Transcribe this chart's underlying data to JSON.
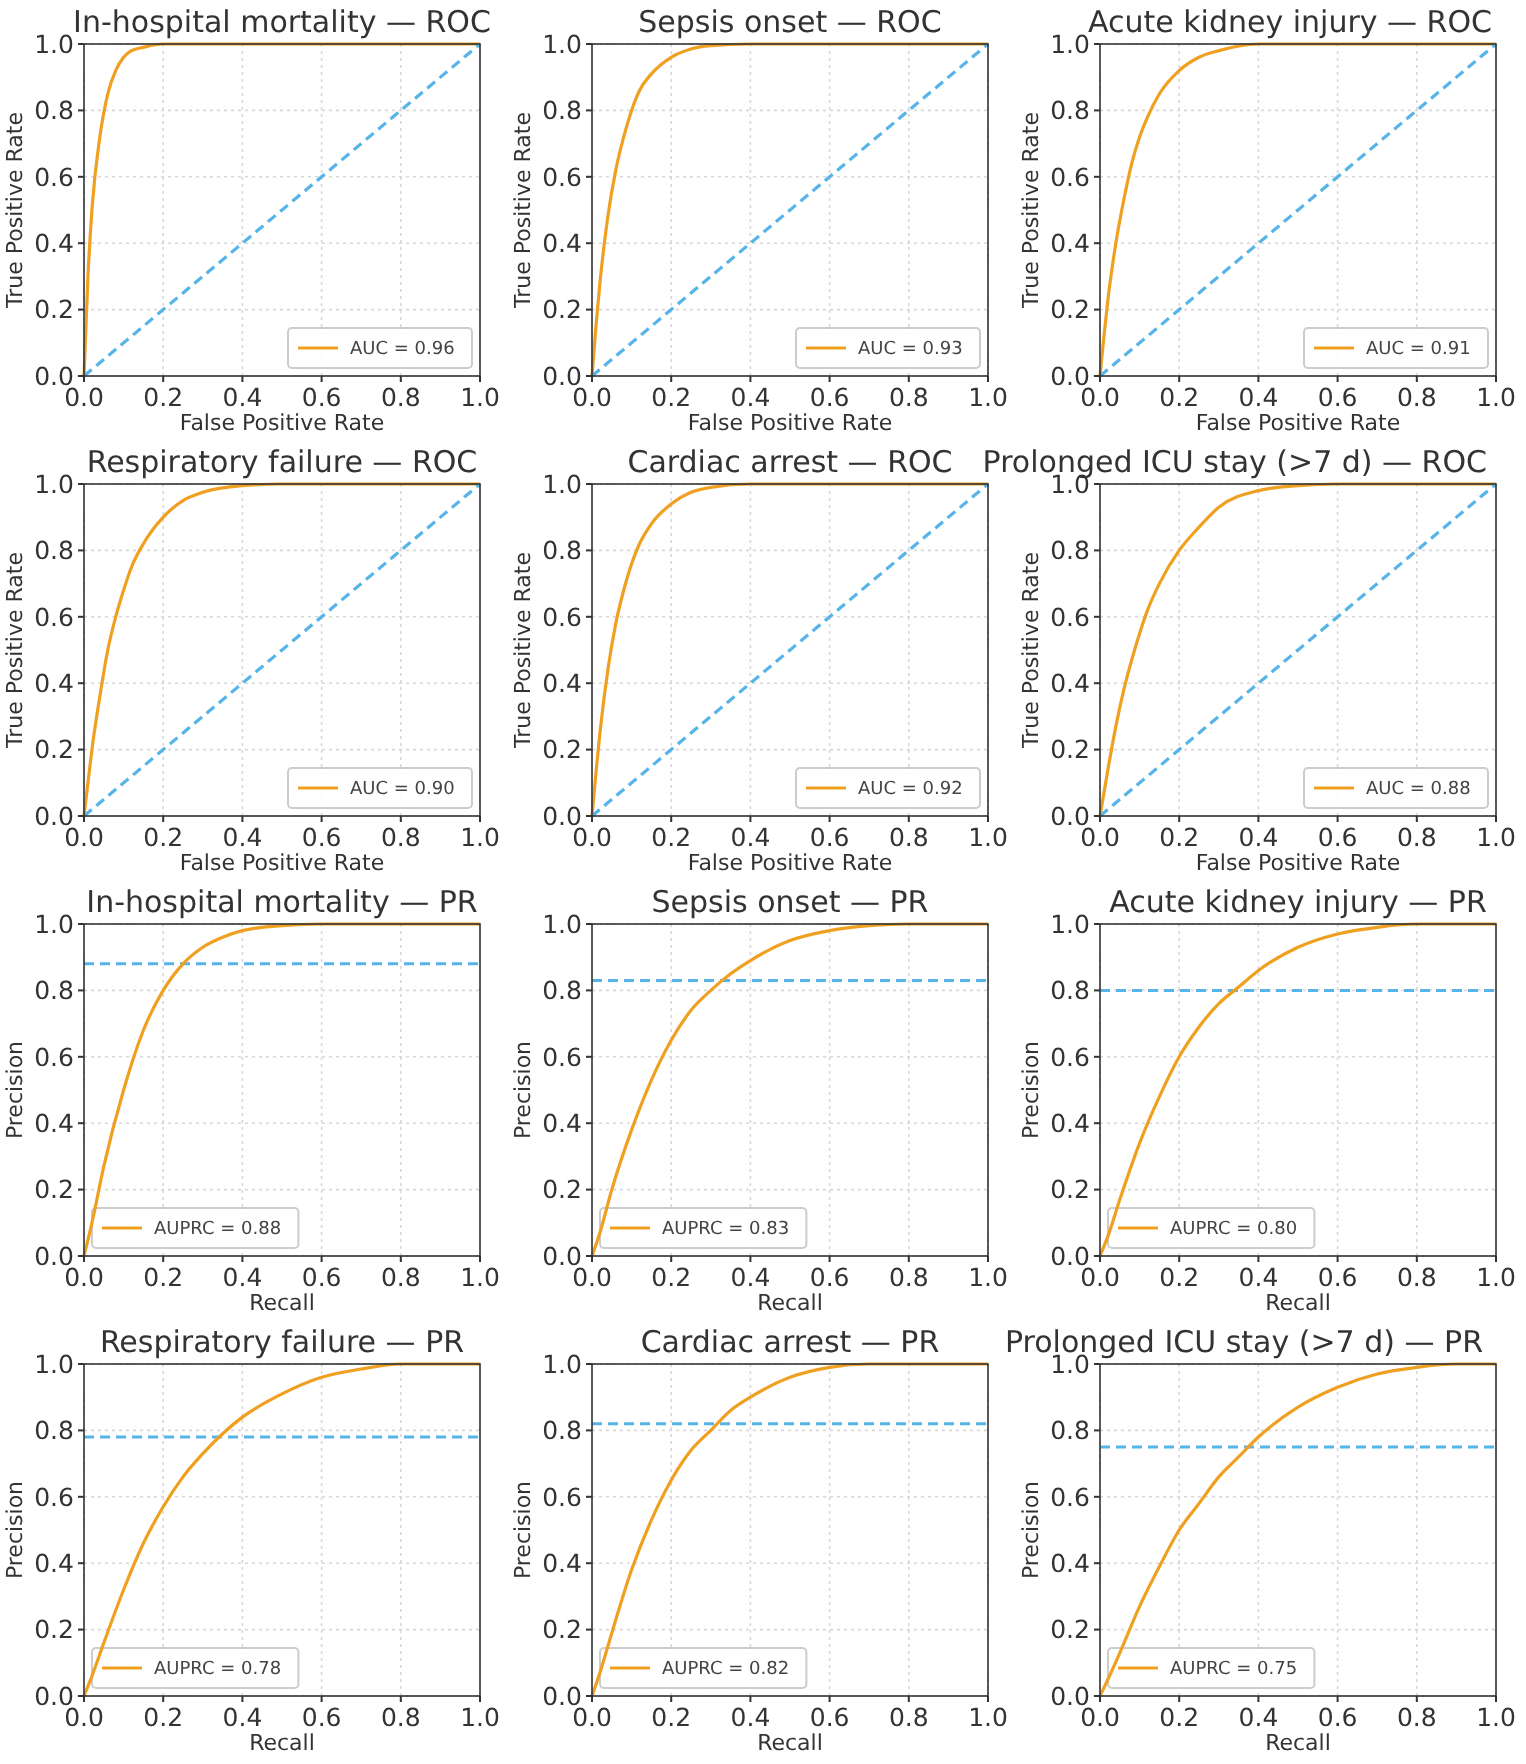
{
  "chart_data": [
    {
      "type": "line",
      "title": "In-hospital mortality — ROC",
      "xlabel": "False Positive Rate",
      "ylabel": "True Positive Rate",
      "xlim": [
        0,
        1
      ],
      "ylim": [
        0,
        1
      ],
      "xticks": [
        {
          "value": 0,
          "label": "0.0"
        },
        {
          "value": 0.2,
          "label": "0.2"
        },
        {
          "value": 0.4,
          "label": "0.4"
        },
        {
          "value": 0.6,
          "label": "0.6"
        },
        {
          "value": 0.8,
          "label": "0.8"
        },
        {
          "value": 1,
          "label": "1.0"
        }
      ],
      "yticks": [
        {
          "value": 0,
          "label": "0.0"
        },
        {
          "value": 0.2,
          "label": "0.2"
        },
        {
          "value": 0.4,
          "label": "0.4"
        },
        {
          "value": 0.6,
          "label": "0.6"
        },
        {
          "value": 0.8,
          "label": "0.8"
        },
        {
          "value": 1,
          "label": "1.0"
        }
      ],
      "grid": true,
      "legend": "bottom right",
      "x": [
        0,
        0.01,
        0.02,
        0.04,
        0.06,
        0.08,
        0.1,
        0.12,
        0.15,
        0.2,
        0.25,
        0.3,
        0.4,
        0.5,
        0.6,
        0.8,
        1
      ],
      "series": [
        {
          "name": "AUC = 0.96",
          "color": "#f0a020",
          "values": [
            0,
            0.3,
            0.5,
            0.72,
            0.85,
            0.92,
            0.96,
            0.98,
            0.99,
            1,
            1,
            1,
            1,
            1,
            1,
            1,
            1
          ]
        },
        {
          "color": "#56b4e9",
          "values": [
            0,
            0.01,
            0.02,
            0.04,
            0.06,
            0.08,
            0.1,
            0.12,
            0.15,
            0.2,
            0.25,
            0.3,
            0.4,
            0.5,
            0.6,
            0.8,
            1
          ],
          "line_style": "dashed"
        }
      ]
    },
    {
      "type": "line",
      "title": "Sepsis onset — ROC",
      "xlabel": "False Positive Rate",
      "ylabel": "True Positive Rate",
      "xlim": [
        0,
        1
      ],
      "ylim": [
        0,
        1
      ],
      "xticks": [
        {
          "value": 0,
          "label": "0.0"
        },
        {
          "value": 0.2,
          "label": "0.2"
        },
        {
          "value": 0.4,
          "label": "0.4"
        },
        {
          "value": 0.6,
          "label": "0.6"
        },
        {
          "value": 0.8,
          "label": "0.8"
        },
        {
          "value": 1,
          "label": "1.0"
        }
      ],
      "yticks": [
        {
          "value": 0,
          "label": "0.0"
        },
        {
          "value": 0.2,
          "label": "0.2"
        },
        {
          "value": 0.4,
          "label": "0.4"
        },
        {
          "value": 0.6,
          "label": "0.6"
        },
        {
          "value": 0.8,
          "label": "0.8"
        },
        {
          "value": 1,
          "label": "1.0"
        }
      ],
      "grid": true,
      "legend": "bottom right",
      "x": [
        0,
        0.01,
        0.02,
        0.04,
        0.06,
        0.08,
        0.1,
        0.12,
        0.15,
        0.2,
        0.25,
        0.3,
        0.4,
        0.5,
        0.6,
        0.8,
        1
      ],
      "series": [
        {
          "name": "AUC = 0.93",
          "color": "#f0a020",
          "values": [
            0,
            0.15,
            0.28,
            0.48,
            0.62,
            0.72,
            0.8,
            0.86,
            0.91,
            0.96,
            0.985,
            0.995,
            1,
            1,
            1,
            1,
            1
          ]
        },
        {
          "color": "#56b4e9",
          "values": [
            0,
            0.01,
            0.02,
            0.04,
            0.06,
            0.08,
            0.1,
            0.12,
            0.15,
            0.2,
            0.25,
            0.3,
            0.4,
            0.5,
            0.6,
            0.8,
            1
          ],
          "line_style": "dashed"
        }
      ]
    },
    {
      "type": "line",
      "title": "Acute kidney injury — ROC",
      "xlabel": "False Positive Rate",
      "ylabel": "True Positive Rate",
      "xlim": [
        0,
        1
      ],
      "ylim": [
        0,
        1
      ],
      "xticks": [
        {
          "value": 0,
          "label": "0.0"
        },
        {
          "value": 0.2,
          "label": "0.2"
        },
        {
          "value": 0.4,
          "label": "0.4"
        },
        {
          "value": 0.6,
          "label": "0.6"
        },
        {
          "value": 0.8,
          "label": "0.8"
        },
        {
          "value": 1,
          "label": "1.0"
        }
      ],
      "yticks": [
        {
          "value": 0,
          "label": "0.0"
        },
        {
          "value": 0.2,
          "label": "0.2"
        },
        {
          "value": 0.4,
          "label": "0.4"
        },
        {
          "value": 0.6,
          "label": "0.6"
        },
        {
          "value": 0.8,
          "label": "0.8"
        },
        {
          "value": 1,
          "label": "1.0"
        }
      ],
      "grid": true,
      "legend": "bottom right",
      "x": [
        0,
        0.01,
        0.02,
        0.04,
        0.06,
        0.08,
        0.1,
        0.12,
        0.15,
        0.2,
        0.25,
        0.3,
        0.4,
        0.5,
        0.6,
        0.8,
        1
      ],
      "series": [
        {
          "name": "AUC = 0.91",
          "color": "#f0a020",
          "values": [
            0,
            0.12,
            0.23,
            0.4,
            0.53,
            0.64,
            0.72,
            0.78,
            0.85,
            0.92,
            0.96,
            0.98,
            1,
            1,
            1,
            1,
            1
          ]
        },
        {
          "color": "#56b4e9",
          "values": [
            0,
            0.01,
            0.02,
            0.04,
            0.06,
            0.08,
            0.1,
            0.12,
            0.15,
            0.2,
            0.25,
            0.3,
            0.4,
            0.5,
            0.6,
            0.8,
            1
          ],
          "line_style": "dashed"
        }
      ]
    },
    {
      "type": "line",
      "title": "Respiratory failure — ROC",
      "xlabel": "False Positive Rate",
      "ylabel": "True Positive Rate",
      "xlim": [
        0,
        1
      ],
      "ylim": [
        0,
        1
      ],
      "xticks": [
        {
          "value": 0,
          "label": "0.0"
        },
        {
          "value": 0.2,
          "label": "0.2"
        },
        {
          "value": 0.4,
          "label": "0.4"
        },
        {
          "value": 0.6,
          "label": "0.6"
        },
        {
          "value": 0.8,
          "label": "0.8"
        },
        {
          "value": 1,
          "label": "1.0"
        }
      ],
      "yticks": [
        {
          "value": 0,
          "label": "0.0"
        },
        {
          "value": 0.2,
          "label": "0.2"
        },
        {
          "value": 0.4,
          "label": "0.4"
        },
        {
          "value": 0.6,
          "label": "0.6"
        },
        {
          "value": 0.8,
          "label": "0.8"
        },
        {
          "value": 1,
          "label": "1.0"
        }
      ],
      "grid": true,
      "legend": "bottom right",
      "x": [
        0,
        0.01,
        0.02,
        0.04,
        0.06,
        0.08,
        0.1,
        0.12,
        0.15,
        0.2,
        0.25,
        0.3,
        0.4,
        0.5,
        0.6,
        0.8,
        1
      ],
      "series": [
        {
          "name": "AUC = 0.90",
          "color": "#f0a020",
          "values": [
            0,
            0.1,
            0.2,
            0.36,
            0.5,
            0.6,
            0.68,
            0.75,
            0.82,
            0.9,
            0.95,
            0.975,
            0.995,
            1,
            1,
            1,
            1
          ]
        },
        {
          "color": "#56b4e9",
          "values": [
            0,
            0.01,
            0.02,
            0.04,
            0.06,
            0.08,
            0.1,
            0.12,
            0.15,
            0.2,
            0.25,
            0.3,
            0.4,
            0.5,
            0.6,
            0.8,
            1
          ],
          "line_style": "dashed"
        }
      ]
    },
    {
      "type": "line",
      "title": "Cardiac arrest — ROC",
      "xlabel": "False Positive Rate",
      "ylabel": "True Positive Rate",
      "xlim": [
        0,
        1
      ],
      "ylim": [
        0,
        1
      ],
      "xticks": [
        {
          "value": 0,
          "label": "0.0"
        },
        {
          "value": 0.2,
          "label": "0.2"
        },
        {
          "value": 0.4,
          "label": "0.4"
        },
        {
          "value": 0.6,
          "label": "0.6"
        },
        {
          "value": 0.8,
          "label": "0.8"
        },
        {
          "value": 1,
          "label": "1.0"
        }
      ],
      "yticks": [
        {
          "value": 0,
          "label": "0.0"
        },
        {
          "value": 0.2,
          "label": "0.2"
        },
        {
          "value": 0.4,
          "label": "0.4"
        },
        {
          "value": 0.6,
          "label": "0.6"
        },
        {
          "value": 0.8,
          "label": "0.8"
        },
        {
          "value": 1,
          "label": "1.0"
        }
      ],
      "grid": true,
      "legend": "bottom right",
      "x": [
        0,
        0.01,
        0.02,
        0.04,
        0.06,
        0.08,
        0.1,
        0.12,
        0.15,
        0.2,
        0.25,
        0.3,
        0.4,
        0.5,
        0.6,
        0.8,
        1
      ],
      "series": [
        {
          "name": "AUC = 0.92",
          "color": "#f0a020",
          "values": [
            0,
            0.13,
            0.25,
            0.44,
            0.58,
            0.68,
            0.76,
            0.82,
            0.88,
            0.94,
            0.975,
            0.99,
            1,
            1,
            1,
            1,
            1
          ]
        },
        {
          "color": "#56b4e9",
          "values": [
            0,
            0.01,
            0.02,
            0.04,
            0.06,
            0.08,
            0.1,
            0.12,
            0.15,
            0.2,
            0.25,
            0.3,
            0.4,
            0.5,
            0.6,
            0.8,
            1
          ],
          "line_style": "dashed"
        }
      ]
    },
    {
      "type": "line",
      "title": "Prolonged ICU stay (>7 d) — ROC",
      "xlabel": "False Positive Rate",
      "ylabel": "True Positive Rate",
      "xlim": [
        0,
        1
      ],
      "ylim": [
        0,
        1
      ],
      "xticks": [
        {
          "value": 0,
          "label": "0.0"
        },
        {
          "value": 0.2,
          "label": "0.2"
        },
        {
          "value": 0.4,
          "label": "0.4"
        },
        {
          "value": 0.6,
          "label": "0.6"
        },
        {
          "value": 0.8,
          "label": "0.8"
        },
        {
          "value": 1,
          "label": "1.0"
        }
      ],
      "yticks": [
        {
          "value": 0,
          "label": "0.0"
        },
        {
          "value": 0.2,
          "label": "0.2"
        },
        {
          "value": 0.4,
          "label": "0.4"
        },
        {
          "value": 0.6,
          "label": "0.6"
        },
        {
          "value": 0.8,
          "label": "0.8"
        },
        {
          "value": 1,
          "label": "1.0"
        }
      ],
      "grid": true,
      "legend": "bottom right",
      "x": [
        0,
        0.01,
        0.02,
        0.04,
        0.06,
        0.08,
        0.1,
        0.12,
        0.15,
        0.2,
        0.25,
        0.3,
        0.4,
        0.5,
        0.6,
        0.8,
        1
      ],
      "series": [
        {
          "name": "AUC = 0.88",
          "color": "#f0a020",
          "values": [
            0,
            0.07,
            0.14,
            0.27,
            0.38,
            0.47,
            0.55,
            0.62,
            0.7,
            0.8,
            0.87,
            0.93,
            0.98,
            0.995,
            1,
            1,
            1
          ]
        },
        {
          "color": "#56b4e9",
          "values": [
            0,
            0.01,
            0.02,
            0.04,
            0.06,
            0.08,
            0.1,
            0.12,
            0.15,
            0.2,
            0.25,
            0.3,
            0.4,
            0.5,
            0.6,
            0.8,
            1
          ],
          "line_style": "dashed"
        }
      ]
    },
    {
      "type": "line",
      "title": "In-hospital mortality — PR",
      "xlabel": "Recall",
      "ylabel": "Precision",
      "xlim": [
        0,
        1
      ],
      "ylim": [
        0,
        1
      ],
      "xticks": [
        {
          "value": 0,
          "label": "0.0"
        },
        {
          "value": 0.2,
          "label": "0.2"
        },
        {
          "value": 0.4,
          "label": "0.4"
        },
        {
          "value": 0.6,
          "label": "0.6"
        },
        {
          "value": 0.8,
          "label": "0.8"
        },
        {
          "value": 1,
          "label": "1.0"
        }
      ],
      "yticks": [
        {
          "value": 0,
          "label": "0.0"
        },
        {
          "value": 0.2,
          "label": "0.2"
        },
        {
          "value": 0.4,
          "label": "0.4"
        },
        {
          "value": 0.6,
          "label": "0.6"
        },
        {
          "value": 0.8,
          "label": "0.8"
        },
        {
          "value": 1,
          "label": "1.0"
        }
      ],
      "grid": true,
      "legend": "bottom left",
      "x": [
        0,
        0.02,
        0.05,
        0.1,
        0.15,
        0.2,
        0.25,
        0.3,
        0.35,
        0.4,
        0.5,
        0.6,
        0.7,
        0.8,
        0.9,
        1
      ],
      "series": [
        {
          "name": "AUPRC = 0.88",
          "color": "#f0a020",
          "values": [
            0,
            0.1,
            0.27,
            0.5,
            0.68,
            0.8,
            0.88,
            0.93,
            0.96,
            0.98,
            0.995,
            1,
            1,
            1,
            1,
            1
          ]
        }
      ],
      "ref_lines": [
        {
          "axis": "y",
          "value": 0.88,
          "color": "#56b4e9",
          "line_style": "dashed"
        }
      ]
    },
    {
      "type": "line",
      "title": "Sepsis onset — PR",
      "xlabel": "Recall",
      "ylabel": "Precision",
      "xlim": [
        0,
        1
      ],
      "ylim": [
        0,
        1
      ],
      "xticks": [
        {
          "value": 0,
          "label": "0.0"
        },
        {
          "value": 0.2,
          "label": "0.2"
        },
        {
          "value": 0.4,
          "label": "0.4"
        },
        {
          "value": 0.6,
          "label": "0.6"
        },
        {
          "value": 0.8,
          "label": "0.8"
        },
        {
          "value": 1,
          "label": "1.0"
        }
      ],
      "yticks": [
        {
          "value": 0,
          "label": "0.0"
        },
        {
          "value": 0.2,
          "label": "0.2"
        },
        {
          "value": 0.4,
          "label": "0.4"
        },
        {
          "value": 0.6,
          "label": "0.6"
        },
        {
          "value": 0.8,
          "label": "0.8"
        },
        {
          "value": 1,
          "label": "1.0"
        }
      ],
      "grid": true,
      "legend": "bottom left",
      "x": [
        0,
        0.02,
        0.05,
        0.1,
        0.15,
        0.2,
        0.25,
        0.3,
        0.35,
        0.4,
        0.5,
        0.6,
        0.7,
        0.8,
        0.9,
        1
      ],
      "series": [
        {
          "name": "AUPRC = 0.83",
          "color": "#f0a020",
          "values": [
            0,
            0.07,
            0.2,
            0.38,
            0.53,
            0.65,
            0.74,
            0.8,
            0.85,
            0.89,
            0.95,
            0.98,
            0.995,
            1,
            1,
            1
          ]
        }
      ],
      "ref_lines": [
        {
          "axis": "y",
          "value": 0.83,
          "color": "#56b4e9",
          "line_style": "dashed"
        }
      ]
    },
    {
      "type": "line",
      "title": "Acute kidney injury — PR",
      "xlabel": "Recall",
      "ylabel": "Precision",
      "xlim": [
        0,
        1
      ],
      "ylim": [
        0,
        1
      ],
      "xticks": [
        {
          "value": 0,
          "label": "0.0"
        },
        {
          "value": 0.2,
          "label": "0.2"
        },
        {
          "value": 0.4,
          "label": "0.4"
        },
        {
          "value": 0.6,
          "label": "0.6"
        },
        {
          "value": 0.8,
          "label": "0.8"
        },
        {
          "value": 1,
          "label": "1.0"
        }
      ],
      "yticks": [
        {
          "value": 0,
          "label": "0.0"
        },
        {
          "value": 0.2,
          "label": "0.2"
        },
        {
          "value": 0.4,
          "label": "0.4"
        },
        {
          "value": 0.6,
          "label": "0.6"
        },
        {
          "value": 0.8,
          "label": "0.8"
        },
        {
          "value": 1,
          "label": "1.0"
        }
      ],
      "grid": true,
      "legend": "bottom left",
      "x": [
        0,
        0.02,
        0.05,
        0.1,
        0.15,
        0.2,
        0.25,
        0.3,
        0.35,
        0.4,
        0.5,
        0.6,
        0.7,
        0.8,
        0.9,
        1
      ],
      "series": [
        {
          "name": "AUPRC = 0.80",
          "color": "#f0a020",
          "values": [
            0,
            0.06,
            0.17,
            0.34,
            0.48,
            0.6,
            0.69,
            0.76,
            0.81,
            0.86,
            0.93,
            0.97,
            0.99,
            1,
            1,
            1
          ]
        }
      ],
      "ref_lines": [
        {
          "axis": "y",
          "value": 0.8,
          "color": "#56b4e9",
          "line_style": "dashed"
        }
      ]
    },
    {
      "type": "line",
      "title": "Respiratory failure — PR",
      "xlabel": "Recall",
      "ylabel": "Precision",
      "xlim": [
        0,
        1
      ],
      "ylim": [
        0,
        1
      ],
      "xticks": [
        {
          "value": 0,
          "label": "0.0"
        },
        {
          "value": 0.2,
          "label": "0.2"
        },
        {
          "value": 0.4,
          "label": "0.4"
        },
        {
          "value": 0.6,
          "label": "0.6"
        },
        {
          "value": 0.8,
          "label": "0.8"
        },
        {
          "value": 1,
          "label": "1.0"
        }
      ],
      "yticks": [
        {
          "value": 0,
          "label": "0.0"
        },
        {
          "value": 0.2,
          "label": "0.2"
        },
        {
          "value": 0.4,
          "label": "0.4"
        },
        {
          "value": 0.6,
          "label": "0.6"
        },
        {
          "value": 0.8,
          "label": "0.8"
        },
        {
          "value": 1,
          "label": "1.0"
        }
      ],
      "grid": true,
      "legend": "bottom left",
      "x": [
        0,
        0.02,
        0.05,
        0.1,
        0.15,
        0.2,
        0.25,
        0.3,
        0.35,
        0.4,
        0.5,
        0.6,
        0.7,
        0.8,
        0.9,
        1
      ],
      "series": [
        {
          "name": "AUPRC = 0.78",
          "color": "#f0a020",
          "values": [
            0,
            0.06,
            0.16,
            0.32,
            0.46,
            0.57,
            0.66,
            0.73,
            0.79,
            0.84,
            0.91,
            0.96,
            0.985,
            1,
            1,
            1
          ]
        }
      ],
      "ref_lines": [
        {
          "axis": "y",
          "value": 0.78,
          "color": "#56b4e9",
          "line_style": "dashed"
        }
      ]
    },
    {
      "type": "line",
      "title": "Cardiac arrest — PR",
      "xlabel": "Recall",
      "ylabel": "Precision",
      "xlim": [
        0,
        1
      ],
      "ylim": [
        0,
        1
      ],
      "xticks": [
        {
          "value": 0,
          "label": "0.0"
        },
        {
          "value": 0.2,
          "label": "0.2"
        },
        {
          "value": 0.4,
          "label": "0.4"
        },
        {
          "value": 0.6,
          "label": "0.6"
        },
        {
          "value": 0.8,
          "label": "0.8"
        },
        {
          "value": 1,
          "label": "1.0"
        }
      ],
      "yticks": [
        {
          "value": 0,
          "label": "0.0"
        },
        {
          "value": 0.2,
          "label": "0.2"
        },
        {
          "value": 0.4,
          "label": "0.4"
        },
        {
          "value": 0.6,
          "label": "0.6"
        },
        {
          "value": 0.8,
          "label": "0.8"
        },
        {
          "value": 1,
          "label": "1.0"
        }
      ],
      "grid": true,
      "legend": "bottom left",
      "x": [
        0,
        0.02,
        0.05,
        0.1,
        0.15,
        0.2,
        0.25,
        0.3,
        0.35,
        0.4,
        0.5,
        0.6,
        0.7,
        0.8,
        0.9,
        1
      ],
      "series": [
        {
          "name": "AUPRC = 0.82",
          "color": "#f0a020",
          "values": [
            0,
            0.07,
            0.19,
            0.38,
            0.53,
            0.65,
            0.74,
            0.8,
            0.86,
            0.9,
            0.96,
            0.99,
            1,
            1,
            1,
            1
          ]
        }
      ],
      "ref_lines": [
        {
          "axis": "y",
          "value": 0.82,
          "color": "#56b4e9",
          "line_style": "dashed"
        }
      ]
    },
    {
      "type": "line",
      "title": "Prolonged ICU stay (>7 d) — PR",
      "xlabel": "Recall",
      "ylabel": "Precision",
      "xlim": [
        0,
        1
      ],
      "ylim": [
        0,
        1
      ],
      "xticks": [
        {
          "value": 0,
          "label": "0.0"
        },
        {
          "value": 0.2,
          "label": "0.2"
        },
        {
          "value": 0.4,
          "label": "0.4"
        },
        {
          "value": 0.6,
          "label": "0.6"
        },
        {
          "value": 0.8,
          "label": "0.8"
        },
        {
          "value": 1,
          "label": "1.0"
        }
      ],
      "yticks": [
        {
          "value": 0,
          "label": "0.0"
        },
        {
          "value": 0.2,
          "label": "0.2"
        },
        {
          "value": 0.4,
          "label": "0.4"
        },
        {
          "value": 0.6,
          "label": "0.6"
        },
        {
          "value": 0.8,
          "label": "0.8"
        },
        {
          "value": 1,
          "label": "1.0"
        }
      ],
      "grid": true,
      "legend": "bottom left",
      "x": [
        0,
        0.02,
        0.05,
        0.1,
        0.15,
        0.2,
        0.25,
        0.3,
        0.35,
        0.4,
        0.5,
        0.6,
        0.7,
        0.8,
        0.9,
        1
      ],
      "series": [
        {
          "name": "AUPRC = 0.75",
          "color": "#f0a020",
          "values": [
            0,
            0.05,
            0.13,
            0.27,
            0.39,
            0.5,
            0.58,
            0.66,
            0.72,
            0.78,
            0.87,
            0.93,
            0.97,
            0.99,
            1,
            1
          ]
        }
      ],
      "ref_lines": [
        {
          "axis": "y",
          "value": 0.75,
          "color": "#56b4e9",
          "line_style": "dashed"
        }
      ]
    }
  ]
}
